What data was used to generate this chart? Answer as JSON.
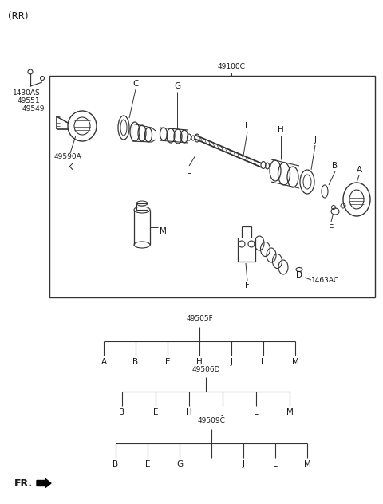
{
  "bg_color": "#ffffff",
  "text_color": "#1a1a1a",
  "line_color": "#333333",
  "title_rr": "(RR)",
  "label_49100C": "49100C",
  "label_1430AS": "1430AS",
  "label_49551": "49551",
  "label_49549": "49549",
  "label_49590A": "49590A",
  "label_1463AC": "1463AC",
  "label_fr": "FR.",
  "tree1_label": "49505F",
  "tree1_items": [
    "A",
    "B",
    "E",
    "H",
    "J",
    "L",
    "M"
  ],
  "tree2_label": "49506D",
  "tree2_items": [
    "B",
    "E",
    "H",
    "J",
    "L",
    "M"
  ],
  "tree3_label": "49509C",
  "tree3_items": [
    "B",
    "E",
    "G",
    "I",
    "J",
    "L",
    "M"
  ],
  "fontsize_small": 6.5,
  "fontsize_label": 7.5
}
